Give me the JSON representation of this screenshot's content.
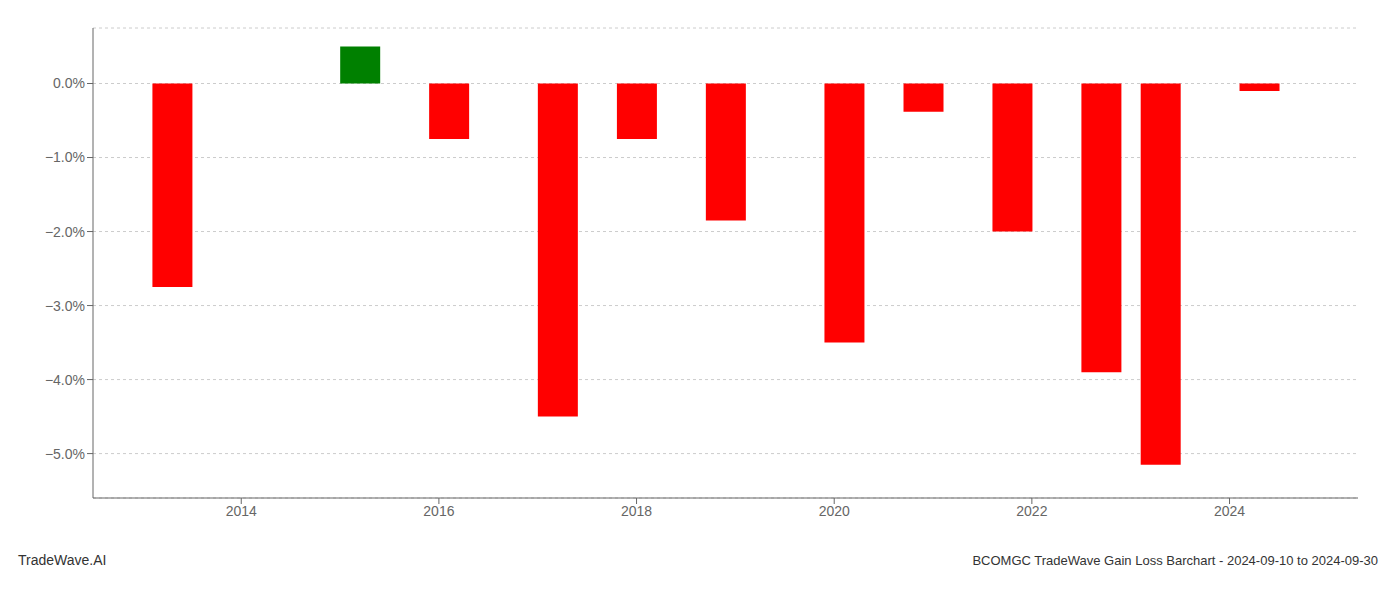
{
  "chart_data": {
    "type": "bar",
    "title": "BCOMGC TradeWave Gain Loss Barchart - 2024-09-10 to 2024-09-30",
    "annotations": [
      "TradeWave.AI"
    ],
    "x": [
      2013.3,
      2015.2,
      2016.1,
      2017.2,
      2018.0,
      2018.9,
      2020.1,
      2020.9,
      2021.8,
      2022.7,
      2023.3,
      2024.3
    ],
    "values": [
      -2.75,
      0.5,
      -0.75,
      -4.5,
      -0.75,
      -1.85,
      -3.5,
      -0.38,
      -2.0,
      -3.9,
      -5.15,
      -0.1
    ],
    "colors": [
      "#ff0000",
      "#008000",
      "#ff0000",
      "#ff0000",
      "#ff0000",
      "#ff0000",
      "#ff0000",
      "#ff0000",
      "#ff0000",
      "#ff0000",
      "#ff0000",
      "#ff0000"
    ],
    "xlim": [
      2012.5,
      2025.3
    ],
    "ylim": [
      -5.6,
      0.75
    ],
    "xticks": [
      2014,
      2016,
      2018,
      2020,
      2022,
      2024
    ],
    "yticks": [
      {
        "value": 0.0,
        "label": "0.0%"
      },
      {
        "value": -1.0,
        "label": "−1.0%"
      },
      {
        "value": -2.0,
        "label": "−2.0%"
      },
      {
        "value": -3.0,
        "label": "−3.0%"
      },
      {
        "value": -4.0,
        "label": "−4.0%"
      },
      {
        "value": -5.0,
        "label": "−5.0%"
      }
    ],
    "grid": true
  }
}
